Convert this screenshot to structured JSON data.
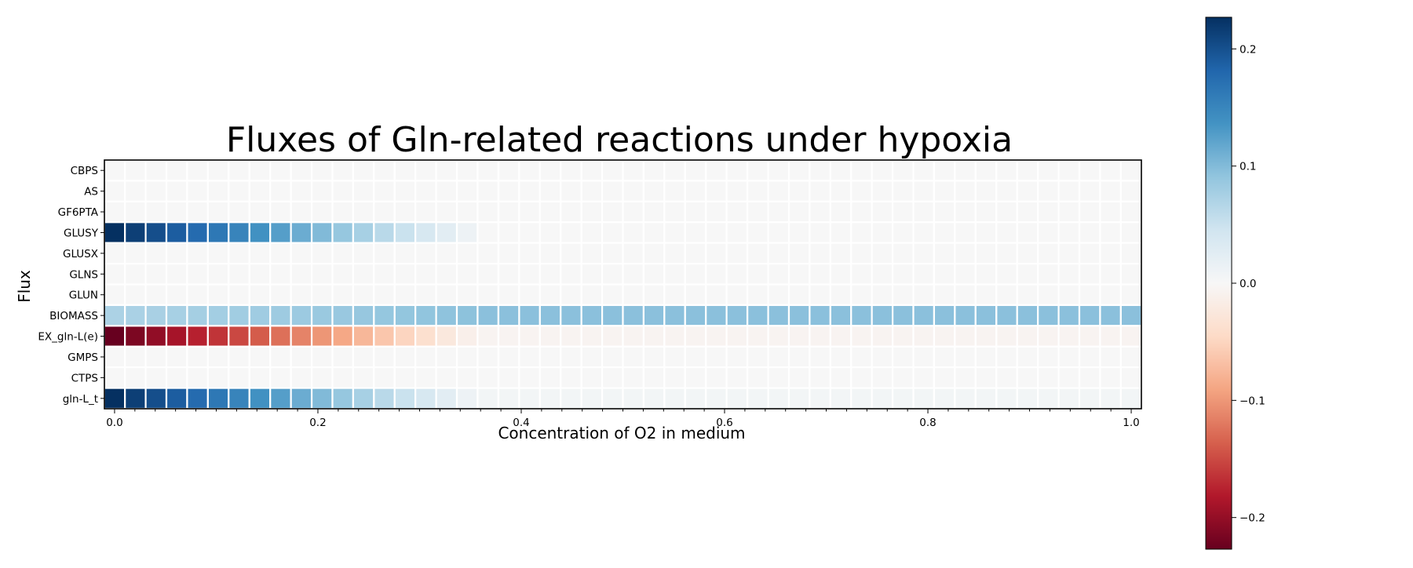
{
  "chart_data": {
    "type": "heatmap",
    "title": "Fluxes of Gln-related reactions under hypoxia",
    "xlabel": "Concentration of O2 in medium",
    "ylabel": "Flux",
    "rows": [
      "CBPS",
      "AS",
      "GF6PTA",
      "GLUSY",
      "GLUSX",
      "GLNS",
      "GLUN",
      "BIOMASS",
      "EX_gln-L(e)",
      "GMPS",
      "CTPS",
      "gln-L_t"
    ],
    "x": [
      0.0,
      0.0204,
      0.0408,
      0.0612,
      0.0816,
      0.102,
      0.1224,
      0.1429,
      0.1633,
      0.1837,
      0.2041,
      0.2245,
      0.2449,
      0.2653,
      0.2857,
      0.3061,
      0.3265,
      0.3469,
      0.3673,
      0.3878,
      0.4082,
      0.4286,
      0.449,
      0.4694,
      0.4898,
      0.5102,
      0.5306,
      0.551,
      0.5714,
      0.5918,
      0.6122,
      0.6327,
      0.6531,
      0.6735,
      0.6939,
      0.7143,
      0.7347,
      0.7551,
      0.7755,
      0.7959,
      0.8163,
      0.8367,
      0.8571,
      0.8776,
      0.898,
      0.9184,
      0.9388,
      0.9592,
      0.9796,
      1.0
    ],
    "xticks": [
      "0.0",
      "0.2",
      "0.4",
      "0.6",
      "0.8",
      "1.0"
    ],
    "xlim": [
      -0.01,
      1.01
    ],
    "color_range": [
      -0.227,
      0.227
    ],
    "colorbar_ticks": [
      "0.2",
      "0.1",
      "0.0",
      "−0.1",
      "−0.2"
    ],
    "colormap": "RdBu",
    "grid": false,
    "legend": "colorbar at right",
    "profiles": {
      "GLUSY": {
        "start": 0.227,
        "zero_at": 0.367,
        "tail": 0.0
      },
      "gln-L_t": {
        "start": 0.227,
        "zero_at": 0.367,
        "tail": 0.006
      },
      "EX_gln-L(e)": {
        "start": -0.227,
        "zero_at": 0.367,
        "tail": -0.006
      },
      "BIOMASS": {
        "start": 0.072,
        "end": 0.095,
        "plateau_from": 0.367
      }
    }
  }
}
